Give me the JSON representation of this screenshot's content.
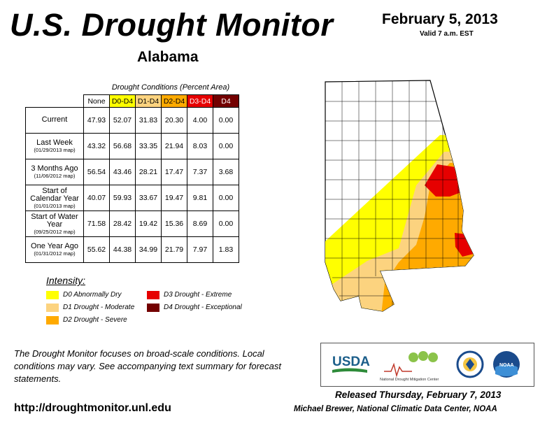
{
  "header": {
    "title": "U.S. Drought Monitor",
    "state": "Alabama",
    "date": "February 5, 2013",
    "valid": "Valid 7 a.m. EST"
  },
  "table": {
    "caption": "Drought Conditions (Percent Area)",
    "columns": [
      "None",
      "D0-D4",
      "D1-D4",
      "D2-D4",
      "D3-D4",
      "D4"
    ],
    "column_colors": [
      "#ffffff",
      "#ffff00",
      "#fcd37f",
      "#ffaa00",
      "#e60000",
      "#730000"
    ],
    "rows": [
      {
        "label": "Current",
        "sublabel": "",
        "values": [
          "47.93",
          "52.07",
          "31.83",
          "20.30",
          "4.00",
          "0.00"
        ]
      },
      {
        "label": "Last Week",
        "sublabel": "(01/29/2013 map)",
        "values": [
          "43.32",
          "56.68",
          "33.35",
          "21.94",
          "8.03",
          "0.00"
        ]
      },
      {
        "label": "3 Months Ago",
        "sublabel": "(11/06/2012 map)",
        "values": [
          "56.54",
          "43.46",
          "28.21",
          "17.47",
          "7.37",
          "3.68"
        ]
      },
      {
        "label": "Start of Calendar Year",
        "sublabel": "(01/01/2013 map)",
        "values": [
          "40.07",
          "59.93",
          "33.67",
          "19.47",
          "9.81",
          "0.00"
        ]
      },
      {
        "label": "Start of Water Year",
        "sublabel": "(09/25/2012 map)",
        "values": [
          "71.58",
          "28.42",
          "19.42",
          "15.36",
          "8.69",
          "0.00"
        ]
      },
      {
        "label": "One Year Ago",
        "sublabel": "(01/31/2012 map)",
        "values": [
          "55.62",
          "44.38",
          "34.99",
          "21.79",
          "7.97",
          "1.83"
        ]
      }
    ]
  },
  "legend": {
    "title": "Intensity:",
    "items": [
      {
        "label": "D0 Abnormally Dry",
        "color": "#ffff00"
      },
      {
        "label": "D1 Drought - Moderate",
        "color": "#fcd37f"
      },
      {
        "label": "D2 Drought - Severe",
        "color": "#ffaa00"
      },
      {
        "label": "D3 Drought - Extreme",
        "color": "#e60000"
      },
      {
        "label": "D4 Drought - Exceptional",
        "color": "#730000"
      }
    ]
  },
  "footer": {
    "note": "The Drought Monitor focuses on broad-scale conditions. Local conditions may vary. See accompanying text summary for forecast statements.",
    "url": "http://droughtmonitor.unl.edu",
    "released": "Released Thursday, February 7, 2013",
    "author": "Michael Brewer, National Climatic Data Center, NOAA",
    "logos": {
      "usda": "USDA",
      "ndmc": "National Drought Mitigation Center",
      "doc": "U.S. Department of Commerce seal",
      "noaa": "NOAA"
    }
  }
}
